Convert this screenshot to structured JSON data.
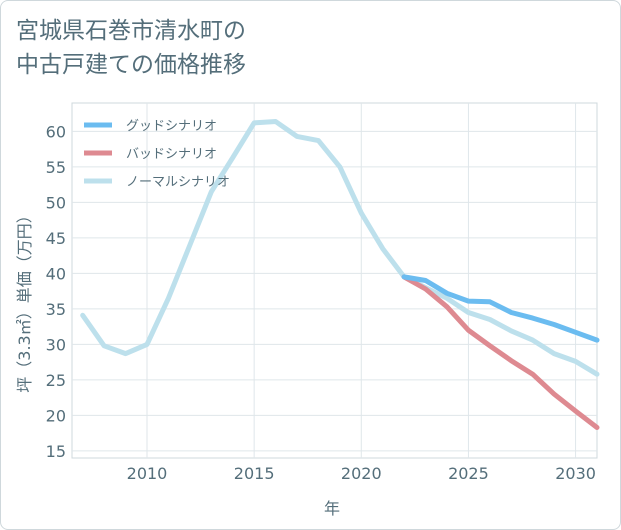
{
  "title": {
    "line1": "宮城県石巻市清水町の",
    "line2": "中古戸建ての価格推移"
  },
  "chart_data": {
    "type": "line",
    "xlabel": "年",
    "ylabel": "坪（3.3㎡）単価（万円）",
    "xlim": [
      2006.5,
      2031
    ],
    "ylim": [
      14,
      64
    ],
    "xticks": [
      2010,
      2015,
      2020,
      2025,
      2030
    ],
    "yticks": [
      15,
      20,
      25,
      30,
      35,
      40,
      45,
      50,
      55,
      60
    ],
    "grid": true,
    "legend_position": "top-left",
    "series": [
      {
        "name": "グッドシナリオ",
        "color": "#6bbcf0",
        "x": [
          2022,
          2023,
          2024,
          2025,
          2026,
          2027,
          2028,
          2029,
          2030,
          2031
        ],
        "values": [
          39.5,
          39.0,
          37.2,
          36.1,
          36.0,
          34.5,
          33.7,
          32.8,
          31.7,
          30.6
        ]
      },
      {
        "name": "バッドシナリオ",
        "color": "#de8a91",
        "x": [
          2022,
          2023,
          2024,
          2025,
          2026,
          2027,
          2028,
          2029,
          2030,
          2031
        ],
        "values": [
          39.5,
          37.8,
          35.3,
          32.0,
          29.8,
          27.7,
          25.8,
          23.0,
          20.6,
          18.3
        ]
      },
      {
        "name": "ノーマルシナリオ",
        "color": "#bde0ec",
        "x": [
          2007,
          2008,
          2009,
          2010,
          2011,
          2012,
          2013,
          2014,
          2015,
          2016,
          2017,
          2018,
          2019,
          2020,
          2021,
          2022,
          2023,
          2024,
          2025,
          2026,
          2027,
          2028,
          2029,
          2030,
          2031
        ],
        "values": [
          34.1,
          29.8,
          28.7,
          30.0,
          36.5,
          44.0,
          51.5,
          56.3,
          61.2,
          61.4,
          59.3,
          58.7,
          55.0,
          48.5,
          43.5,
          39.5,
          38.0,
          36.5,
          34.5,
          33.5,
          31.9,
          30.6,
          28.7,
          27.6,
          25.8
        ]
      }
    ]
  }
}
